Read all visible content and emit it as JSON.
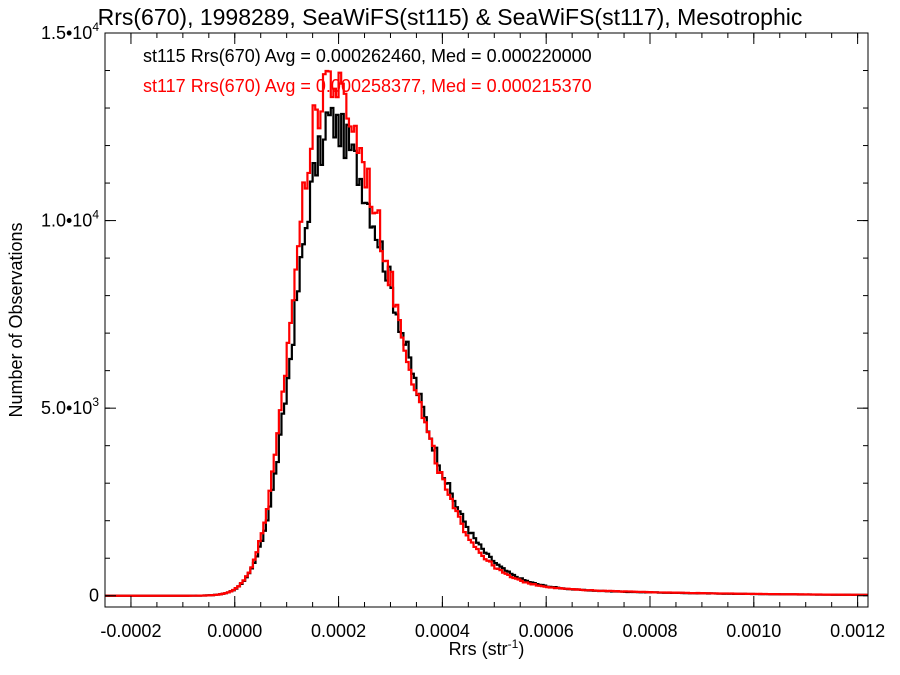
{
  "chart_data": {
    "type": "histogram-step",
    "title": "Rrs(670), 1998289, SeaWiFS(st115) & SeaWiFS(st117), Mesotrophic",
    "xlabel": "Rrs (str",
    "xlabel_sup": "-1",
    "xlabel_suffix": ")",
    "ylabel": "Number of Observations",
    "xlim": [
      -0.00025,
      0.00122
    ],
    "ylim": [
      -300,
      15000
    ],
    "xticks": [
      {
        "v": -0.0002,
        "label": "-0.0002"
      },
      {
        "v": 0.0,
        "label": "0.0000"
      },
      {
        "v": 0.0002,
        "label": "0.0002"
      },
      {
        "v": 0.0004,
        "label": "0.0004"
      },
      {
        "v": 0.0006,
        "label": "0.0006"
      },
      {
        "v": 0.0008,
        "label": "0.0008"
      },
      {
        "v": 0.001,
        "label": "0.0010"
      },
      {
        "v": 0.0012,
        "label": "0.0012"
      }
    ],
    "yticks": [
      {
        "v": 0,
        "base": "0",
        "sup": ""
      },
      {
        "v": 5000,
        "base": "5.0•10",
        "sup": "3"
      },
      {
        "v": 10000,
        "base": "1.0•10",
        "sup": "4"
      },
      {
        "v": 15000,
        "base": "1.5•10",
        "sup": "4"
      }
    ],
    "x_minor_step": 5e-05,
    "y_minor_step": 1000,
    "bin_width": 5e-06,
    "series": [
      {
        "name": "st115",
        "color": "#000000",
        "annotation": "st115 Rrs(670) Avg = 0.000262460, Med = 0.000220000",
        "peak_x": 0.000175,
        "peak_y": 12000,
        "sigma_left": 6e-05,
        "sigma_right": 0.000135,
        "jitter": 0.045
      },
      {
        "name": "st117",
        "color": "#ff0000",
        "annotation": "st117 Rrs(670) Avg = 0.000258377, Med = 0.000215370",
        "peak_x": 0.00017,
        "peak_y": 13100,
        "sigma_left": 5.8e-05,
        "sigma_right": 0.00013,
        "jitter": 0.045
      }
    ]
  }
}
